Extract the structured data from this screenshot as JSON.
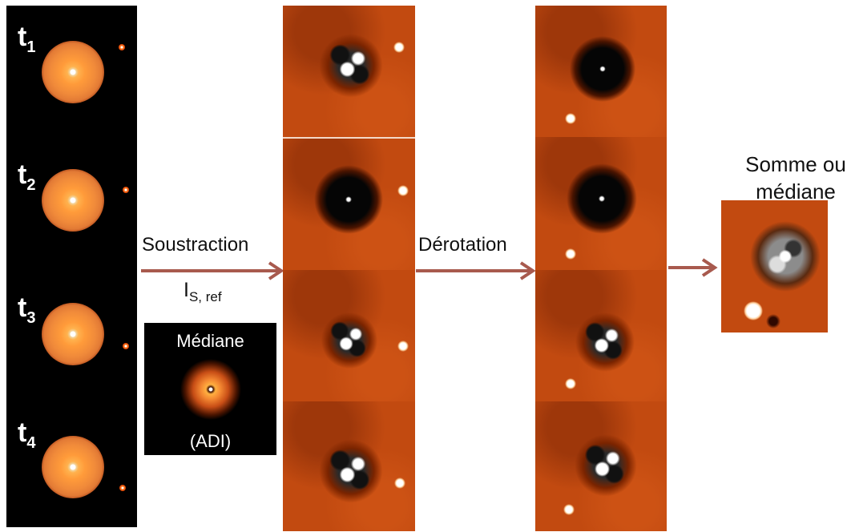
{
  "raw_frames": {
    "labels": [
      {
        "base": "t",
        "sub": "1"
      },
      {
        "base": "t",
        "sub": "2"
      },
      {
        "base": "t",
        "sub": "3"
      },
      {
        "base": "t",
        "sub": "4"
      }
    ]
  },
  "step_subtract": {
    "label": "Soustraction",
    "ref_base": "I",
    "ref_sub": "S, ref"
  },
  "median_box": {
    "top_label": "Médiane",
    "bottom_label": "(ADI)"
  },
  "step_derotate": {
    "label": "Dérotation"
  },
  "final": {
    "caption_line1": "Somme ou",
    "caption_line2": "médiane"
  },
  "colors": {
    "arrow": "#a85a4e",
    "residual_background": "#c24a10"
  }
}
